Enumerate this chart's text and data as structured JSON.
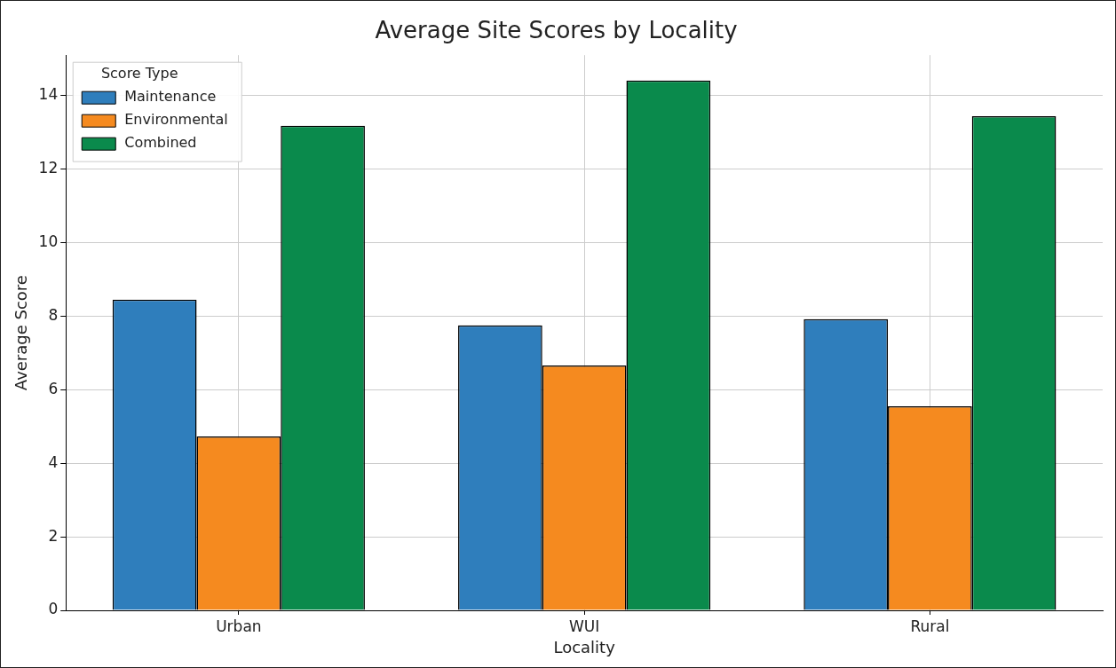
{
  "chart_data": {
    "type": "bar",
    "title": "Average Site Scores by Locality",
    "xlabel": "Locality",
    "ylabel": "Average Score",
    "legend_title": "Score Type",
    "categories": [
      "Urban",
      "WUI",
      "Rural"
    ],
    "series": [
      {
        "name": "Maintenance",
        "color": "#2f7ebc",
        "values": [
          8.45,
          7.75,
          7.92
        ]
      },
      {
        "name": "Environmental",
        "color": "#f58a1f",
        "values": [
          4.73,
          6.66,
          5.55
        ]
      },
      {
        "name": "Combined",
        "color": "#0a8a4c",
        "values": [
          13.18,
          14.41,
          13.44
        ]
      }
    ],
    "ylim": [
      0,
      15.1
    ],
    "yticks": [
      0,
      2,
      4,
      6,
      8,
      10,
      12,
      14
    ],
    "grid": true,
    "legend": "top left"
  }
}
